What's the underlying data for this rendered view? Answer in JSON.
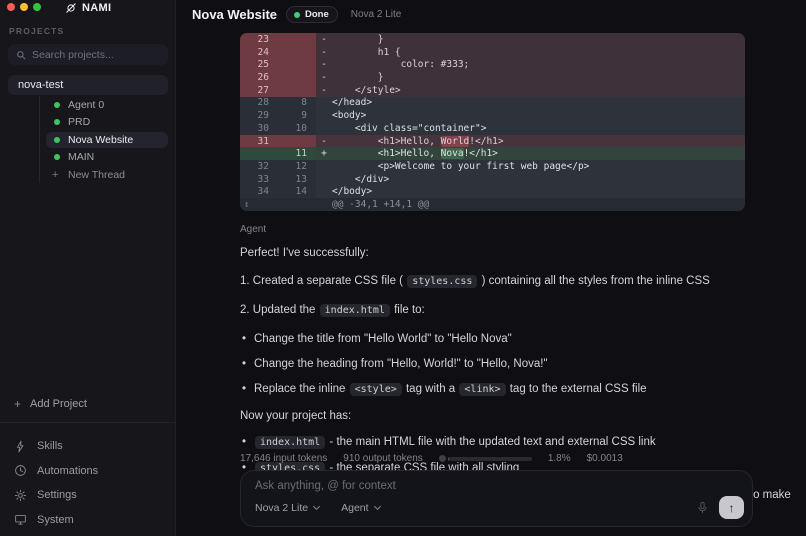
{
  "app": {
    "name": "NAMI"
  },
  "icons": {
    "bullet": "•",
    "expand": "↕",
    "plus": "+",
    "arrow_up": "↑"
  },
  "colors": {
    "status_green": "#3ecf6e",
    "deletion_red": "#6e3b42",
    "addition_green": "#2d4b3c",
    "thread_dot_green": "#3fc463"
  },
  "sidebar": {
    "projects_label": "PROJECTS",
    "search_placeholder": "Search projects...",
    "project_name": "nova-test",
    "threads": [
      {
        "label": "Agent 0",
        "selected": false
      },
      {
        "label": "PRD",
        "selected": false
      },
      {
        "label": "Nova Website",
        "selected": true
      },
      {
        "label": "MAIN",
        "selected": false
      }
    ],
    "new_thread_label": "New Thread",
    "add_project_label": "Add Project",
    "nav": [
      {
        "label": "Skills",
        "icon": "lightning-icon"
      },
      {
        "label": "Automations",
        "icon": "clock-icon"
      },
      {
        "label": "Settings",
        "icon": "gear-icon"
      },
      {
        "label": "System",
        "icon": "monitor-icon"
      }
    ]
  },
  "header": {
    "title": "Nova Website",
    "status_label": "Done",
    "model_label": "Nova 2 Lite"
  },
  "diff": {
    "rows": [
      {
        "type": "delb",
        "old": "23",
        "new": "",
        "sign": "-",
        "segs": [
          {
            "t": "        }"
          }
        ]
      },
      {
        "type": "delb",
        "old": "24",
        "new": "",
        "sign": "-",
        "segs": [
          {
            "t": "        h1 {"
          }
        ]
      },
      {
        "type": "delb",
        "old": "25",
        "new": "",
        "sign": "-",
        "segs": [
          {
            "t": "            color: #333;"
          }
        ]
      },
      {
        "type": "delb",
        "old": "26",
        "new": "",
        "sign": "-",
        "segs": [
          {
            "t": "        }"
          }
        ]
      },
      {
        "type": "delb",
        "old": "27",
        "new": "",
        "sign": "-",
        "segs": [
          {
            "t": "    </style>"
          }
        ]
      },
      {
        "type": "ctx",
        "old": "28",
        "new": "8",
        "sign": "",
        "segs": [
          {
            "t": "</head>"
          }
        ]
      },
      {
        "type": "ctx",
        "old": "29",
        "new": "9",
        "sign": "",
        "segs": [
          {
            "t": "<body>"
          }
        ]
      },
      {
        "type": "ctx",
        "old": "30",
        "new": "10",
        "sign": "",
        "segs": [
          {
            "t": "    <div class=\"container\">"
          }
        ]
      },
      {
        "type": "dell",
        "old": "31",
        "new": "",
        "sign": "-",
        "segs": [
          {
            "t": "        <h1>Hello, "
          },
          {
            "t": "World",
            "hl": true
          },
          {
            "t": "!</h1>"
          }
        ]
      },
      {
        "type": "add",
        "old": "",
        "new": "11",
        "sign": "+",
        "segs": [
          {
            "t": "        <h1>Hello, "
          },
          {
            "t": "Nova",
            "hl": true
          },
          {
            "t": "!</h1>"
          }
        ]
      },
      {
        "type": "ctx",
        "old": "32",
        "new": "12",
        "sign": "",
        "segs": [
          {
            "t": "        <p>Welcome to your first web page</p>"
          }
        ]
      },
      {
        "type": "ctx",
        "old": "33",
        "new": "13",
        "sign": "",
        "segs": [
          {
            "t": "    </div>"
          }
        ]
      },
      {
        "type": "ctx",
        "old": "34",
        "new": "14",
        "sign": "",
        "segs": [
          {
            "t": "</body>"
          }
        ]
      },
      {
        "type": "hunk",
        "old": "",
        "new": "",
        "sign": "",
        "segs": [
          {
            "t": "@@ -34,1 +14,1 @@"
          }
        ]
      }
    ]
  },
  "message": {
    "author": "Agent",
    "blocks": [
      {
        "kind": "p",
        "segs": [
          {
            "t": "Perfect! I've successfully:"
          }
        ]
      },
      {
        "kind": "num",
        "segs": [
          {
            "t": "1. Created a separate CSS file ( "
          },
          {
            "code": "styles.css"
          },
          {
            "t": " ) containing all the styles from the inline CSS"
          }
        ]
      },
      {
        "kind": "num",
        "segs": [
          {
            "t": "2. Updated the "
          },
          {
            "code": "index.html"
          },
          {
            "t": " file to:"
          }
        ]
      },
      {
        "kind": "bullet",
        "segs": [
          {
            "t": "Change the title from \"Hello World\" to \"Hello Nova\""
          }
        ]
      },
      {
        "kind": "bullet",
        "segs": [
          {
            "t": "Change the heading from \"Hello, World!\" to \"Hello, Nova!\""
          }
        ]
      },
      {
        "kind": "bullet",
        "segs": [
          {
            "t": "Replace the inline "
          },
          {
            "code": "<style>"
          },
          {
            "t": " tag with a "
          },
          {
            "code": "<link>"
          },
          {
            "t": " tag to the external CSS file"
          }
        ]
      },
      {
        "kind": "p",
        "segs": [
          {
            "t": "Now your project has:"
          }
        ]
      },
      {
        "kind": "bullet",
        "segs": [
          {
            "code": "index.html"
          },
          {
            "t": " - the main HTML file with the updated text and external CSS link"
          }
        ]
      },
      {
        "kind": "bullet",
        "segs": [
          {
            "code": "styles.css"
          },
          {
            "t": " - the separate CSS file with all styling"
          }
        ]
      },
      {
        "kind": "p",
        "segs": [
          {
            "t": "The external CSS approach makes your code more organized and maintainable. Would you like me to make any additional changes to the styling or content?"
          }
        ]
      }
    ]
  },
  "stats": {
    "input_tokens": "17,646 input tokens",
    "output_tokens": "910 output tokens",
    "context_percent": "1.8%",
    "cost": "$0.0013"
  },
  "composer": {
    "placeholder": "Ask anything, @ for context",
    "model": "Nova 2 Lite",
    "mode": "Agent"
  }
}
